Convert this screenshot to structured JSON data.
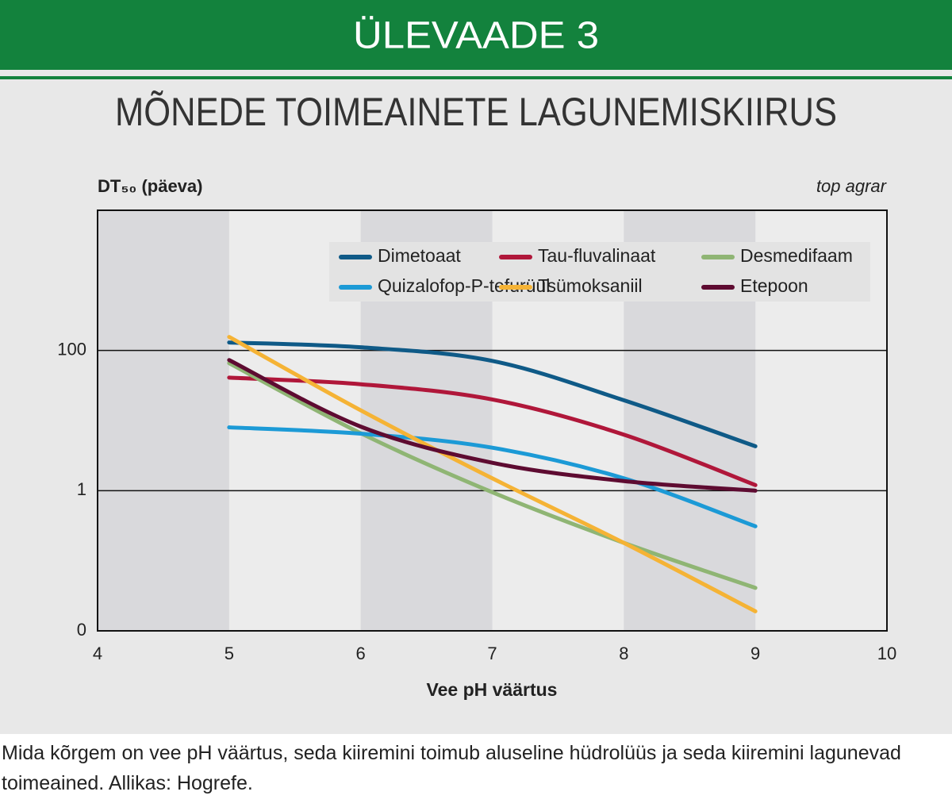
{
  "header": "ÜLEVAADE 3",
  "chart_data": {
    "type": "line",
    "title": "MÕNEDE TOIMEAINETE LAGUNEMISKIIRUS",
    "y_label": "DT₅₀ (päeva)",
    "source": "top agrar",
    "x_label": "Vee pH väärtus",
    "x": [
      5,
      6,
      7,
      8,
      9
    ],
    "xlim": [
      4,
      10
    ],
    "xticks": [
      4,
      5,
      6,
      7,
      8,
      9,
      10
    ],
    "ylim": [
      0.01,
      10000
    ],
    "log_y": true,
    "yticks": [
      {
        "value": 0.01,
        "label": "0"
      },
      1,
      100
    ],
    "grid": true,
    "series": [
      {
        "name": "Dimetoaat",
        "color": "#0f5a87",
        "values": [
          130,
          111,
          71,
          19.5,
          4.3
        ]
      },
      {
        "name": "Tau-fluvalinaat",
        "color": "#b0173a",
        "values": [
          41,
          33,
          20,
          6.3,
          1.2
        ]
      },
      {
        "name": "Desmedifaam",
        "color": "#8fb574",
        "values": [
          66,
          6.6,
          0.95,
          0.18,
          0.041
        ]
      },
      {
        "name": "Quizalofop-P-tefurüül",
        "color": "#1c9ad6",
        "values": [
          8,
          6.5,
          4.1,
          1.5,
          0.31
        ]
      },
      {
        "name": "Tsümoksaniil",
        "color": "#f5b335",
        "values": [
          156,
          14,
          1.5,
          0.18,
          0.019
        ]
      },
      {
        "name": "Etepoon",
        "color": "#5e0b31",
        "values": [
          73,
          8.2,
          2.5,
          1.37,
          1
        ]
      }
    ]
  },
  "caption": "Mida kõrgem on vee pH väärtus, seda kiiremini toimub aluseline hüdrolüüs ja seda kiiremini lagunevad toimeained. Allikas: Hogrefe."
}
